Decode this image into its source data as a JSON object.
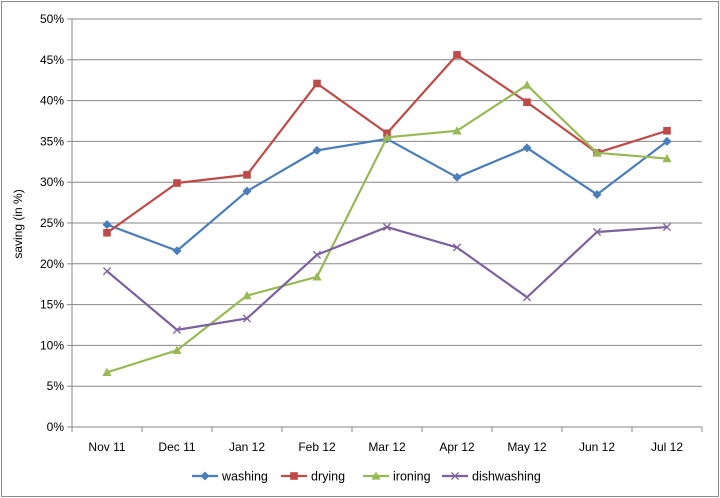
{
  "chart_data": {
    "type": "line",
    "title": "",
    "xlabel": "",
    "ylabel": "saving (in %)",
    "ylim": [
      0,
      50
    ],
    "y_ticks": [
      "0%",
      "5%",
      "10%",
      "15%",
      "20%",
      "25%",
      "30%",
      "35%",
      "40%",
      "45%",
      "50%"
    ],
    "categories": [
      "Nov 11",
      "Dec 11",
      "Jan 12",
      "Feb 12",
      "Mar 12",
      "Apr 12",
      "May 12",
      "Jun 12",
      "Jul 12"
    ],
    "grid": "horizontal",
    "legend_position": "bottom",
    "series": [
      {
        "name": "washing",
        "color": "#4a7ebb",
        "marker": "diamond",
        "values": [
          24.8,
          21.6,
          28.9,
          33.9,
          35.3,
          30.6,
          34.2,
          28.5,
          35.0
        ]
      },
      {
        "name": "drying",
        "color": "#be4b48",
        "marker": "square",
        "values": [
          23.8,
          29.9,
          30.9,
          42.1,
          36.0,
          45.6,
          39.8,
          33.6,
          36.3
        ]
      },
      {
        "name": "ironing",
        "color": "#98b954",
        "marker": "triangle",
        "values": [
          6.7,
          9.4,
          16.1,
          18.4,
          35.5,
          36.3,
          41.9,
          33.6,
          32.9
        ]
      },
      {
        "name": "dishwashing",
        "color": "#7d60a0",
        "marker": "x",
        "values": [
          19.1,
          11.9,
          13.3,
          21.1,
          24.5,
          22.0,
          15.9,
          23.9,
          24.5
        ]
      }
    ]
  }
}
